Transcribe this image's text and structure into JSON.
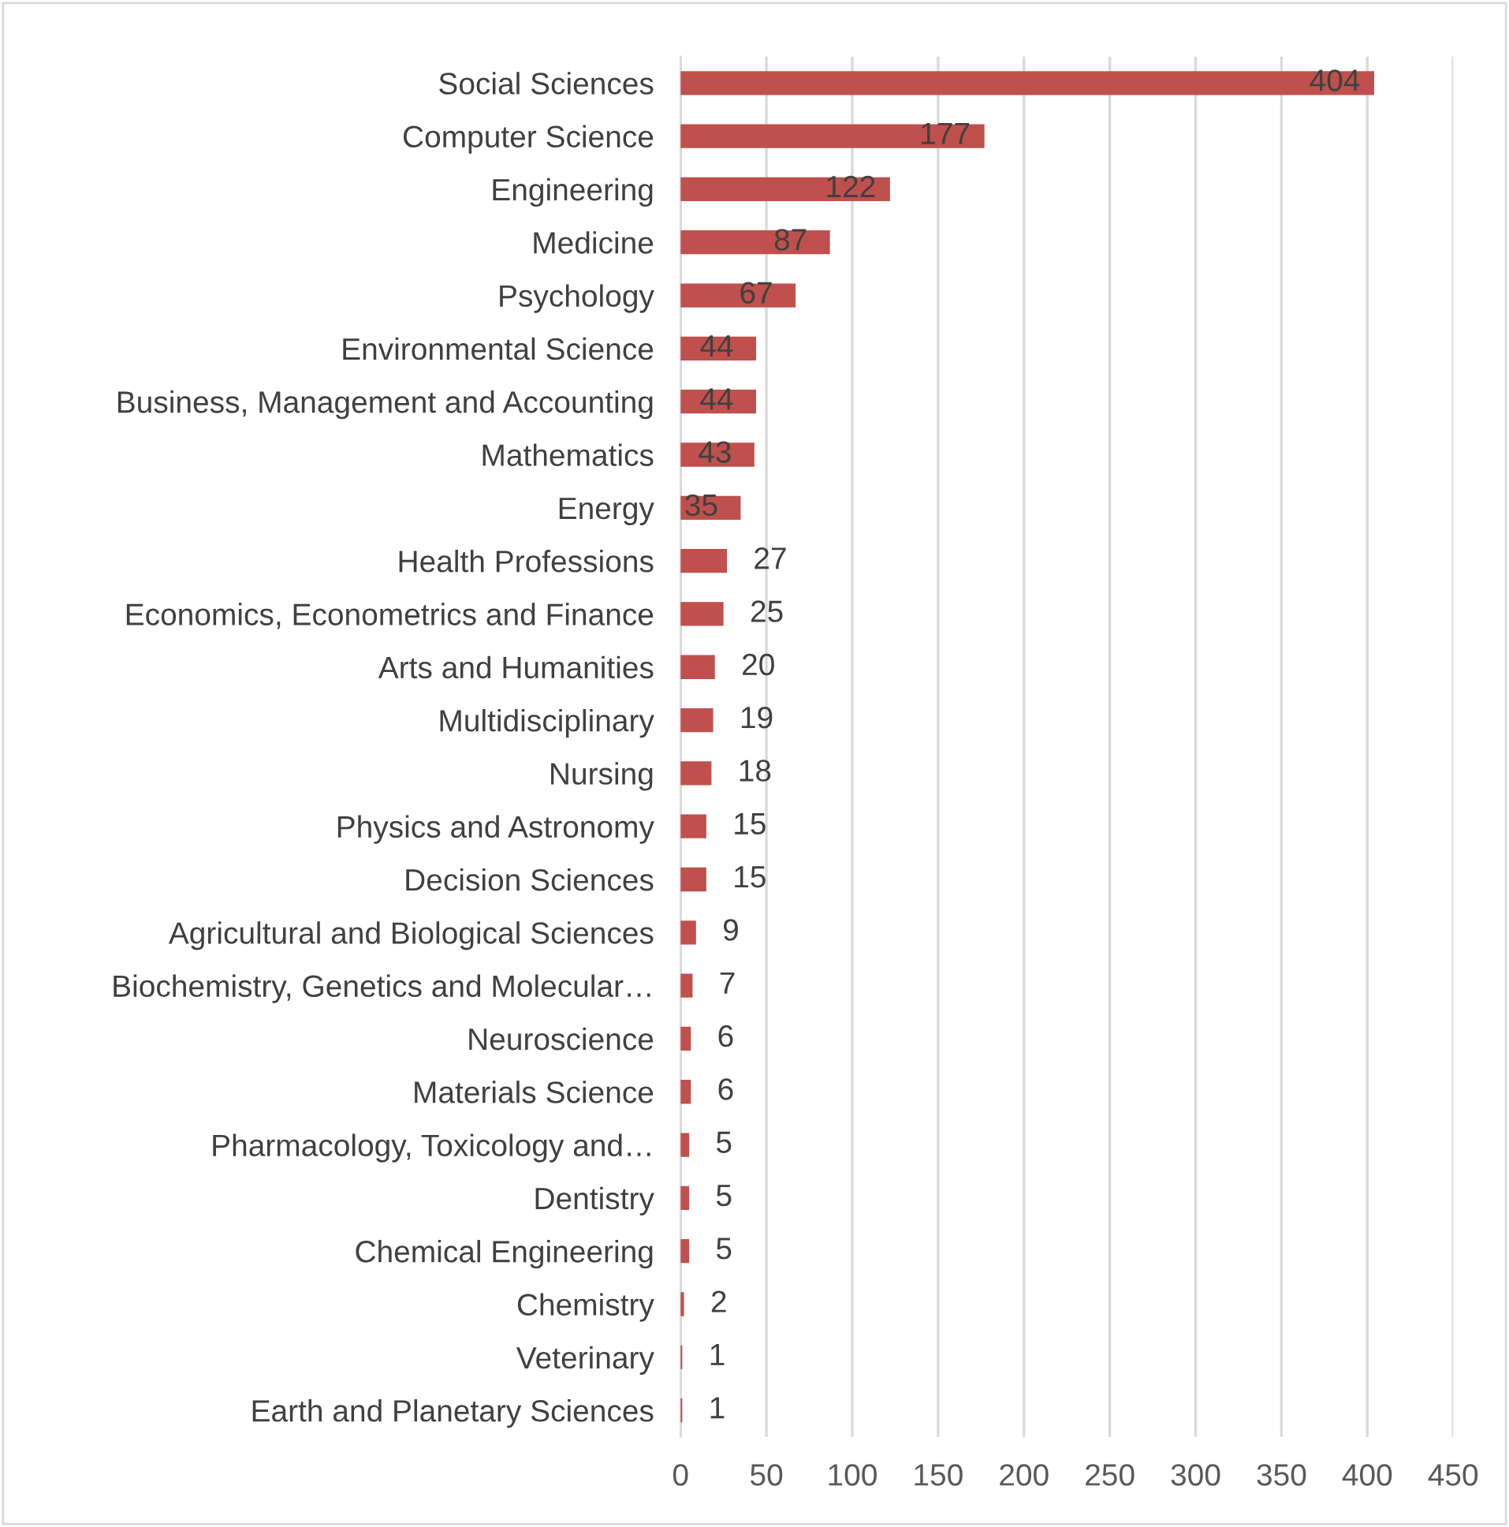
{
  "chart_data": {
    "type": "bar",
    "orientation": "horizontal",
    "categories": [
      "Social Sciences",
      "Computer Science",
      "Engineering",
      "Medicine",
      "Psychology",
      "Environmental Science",
      "Business, Management and Accounting",
      "Mathematics",
      "Energy",
      "Health Professions",
      "Economics, Econometrics and Finance",
      "Arts and Humanities",
      "Multidisciplinary",
      "Nursing",
      "Physics and Astronomy",
      "Decision Sciences",
      "Agricultural and Biological Sciences",
      "Biochemistry, Genetics and Molecular…",
      "Neuroscience",
      "Materials Science",
      "Pharmacology, Toxicology and…",
      "Dentistry",
      "Chemical Engineering",
      "Chemistry",
      "Veterinary",
      "Earth and Planetary Sciences"
    ],
    "values": [
      404,
      177,
      122,
      87,
      67,
      44,
      44,
      43,
      35,
      27,
      25,
      20,
      19,
      18,
      15,
      15,
      9,
      7,
      6,
      6,
      5,
      5,
      5,
      2,
      1,
      1
    ],
    "color": "#c0504d",
    "xlim": [
      0,
      450
    ],
    "xticks": [
      0,
      50,
      100,
      150,
      200,
      250,
      300,
      350,
      400,
      450
    ],
    "grid": "x",
    "data_labels": true
  }
}
